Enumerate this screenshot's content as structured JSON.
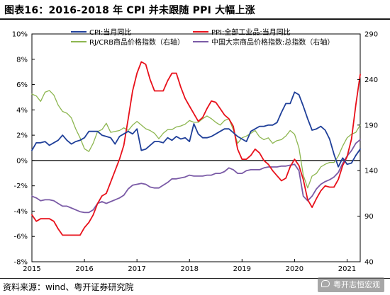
{
  "title": "图表16：2016-2018 年 CPI 并未跟随 PPI 大幅上涨",
  "source": "资料来源：wind、粤开证券研究院",
  "watermark": "粤开志恒宏观",
  "colors": {
    "cpi": "#1f3f99",
    "ppi": "#e8101a",
    "rjcrb": "#8db650",
    "cn": "#7a5aa6",
    "zero": "#000000"
  },
  "chart_data": {
    "type": "line",
    "x_range": [
      "2015-01",
      "2021-04"
    ],
    "x_ticks": [
      "2015",
      "2016",
      "2017",
      "2018",
      "2019",
      "2020",
      "2021"
    ],
    "y_left": {
      "ticks": [
        "10%",
        "8%",
        "6%",
        "4%",
        "2%",
        "0%",
        "-2%",
        "-4%",
        "-6%",
        "-8%"
      ],
      "range": [
        -8,
        10
      ]
    },
    "y_right": {
      "ticks": [
        "290",
        "240",
        "190",
        "140",
        "90",
        "40"
      ],
      "range": [
        40,
        290
      ]
    },
    "legend": [
      {
        "key": "cpi",
        "label": "CPI:当月同比"
      },
      {
        "key": "ppi",
        "label": "PPI:全部工业品:当月同比"
      },
      {
        "key": "rjcrb",
        "label": "RJ/CRB商品价格指数（右轴）"
      },
      {
        "key": "cn",
        "label": "中国大宗商品价格指数:总指数（右轴）"
      }
    ],
    "series": [
      {
        "name": "CPI:当月同比",
        "key": "cpi",
        "axis": "left",
        "x": [
          "2015-01",
          "2015-02",
          "2015-03",
          "2015-04",
          "2015-05",
          "2015-06",
          "2015-07",
          "2015-08",
          "2015-09",
          "2015-10",
          "2015-11",
          "2015-12",
          "2016-01",
          "2016-02",
          "2016-03",
          "2016-04",
          "2016-05",
          "2016-06",
          "2016-07",
          "2016-08",
          "2016-09",
          "2016-10",
          "2016-11",
          "2016-12",
          "2017-01",
          "2017-02",
          "2017-03",
          "2017-04",
          "2017-05",
          "2017-06",
          "2017-07",
          "2017-08",
          "2017-09",
          "2017-10",
          "2017-11",
          "2017-12",
          "2018-01",
          "2018-02",
          "2018-03",
          "2018-04",
          "2018-05",
          "2018-06",
          "2018-07",
          "2018-08",
          "2018-09",
          "2018-10",
          "2018-11",
          "2018-12",
          "2019-01",
          "2019-02",
          "2019-03",
          "2019-04",
          "2019-05",
          "2019-06",
          "2019-07",
          "2019-08",
          "2019-09",
          "2019-10",
          "2019-11",
          "2019-12",
          "2020-01",
          "2020-02",
          "2020-03",
          "2020-04",
          "2020-05",
          "2020-06",
          "2020-07",
          "2020-08",
          "2020-09",
          "2020-10",
          "2020-11",
          "2020-12",
          "2021-01",
          "2021-02",
          "2021-03",
          "2021-04"
        ],
        "y": [
          0.8,
          1.4,
          1.4,
          1.5,
          1.2,
          1.4,
          1.6,
          2.0,
          1.6,
          1.3,
          1.5,
          1.6,
          1.8,
          2.3,
          2.3,
          2.3,
          2.0,
          1.9,
          1.8,
          1.3,
          1.9,
          2.1,
          2.3,
          2.1,
          2.5,
          0.8,
          0.9,
          1.2,
          1.5,
          1.5,
          1.4,
          1.8,
          1.6,
          1.9,
          1.7,
          1.8,
          1.5,
          2.9,
          2.1,
          1.8,
          1.8,
          1.9,
          2.1,
          2.3,
          2.5,
          2.5,
          2.2,
          1.9,
          1.7,
          1.5,
          2.3,
          2.5,
          2.7,
          2.7,
          2.8,
          2.8,
          3.0,
          3.8,
          4.5,
          4.5,
          5.4,
          5.2,
          4.3,
          3.3,
          2.4,
          2.5,
          2.7,
          2.4,
          1.7,
          0.5,
          -0.5,
          0.2,
          -0.3,
          -0.2,
          0.4,
          0.9
        ]
      },
      {
        "name": "PPI:全部工业品:当月同比",
        "key": "ppi",
        "axis": "left",
        "x": [
          "2015-01",
          "2015-02",
          "2015-03",
          "2015-04",
          "2015-05",
          "2015-06",
          "2015-07",
          "2015-08",
          "2015-09",
          "2015-10",
          "2015-11",
          "2015-12",
          "2016-01",
          "2016-02",
          "2016-03",
          "2016-04",
          "2016-05",
          "2016-06",
          "2016-07",
          "2016-08",
          "2016-09",
          "2016-10",
          "2016-11",
          "2016-12",
          "2017-01",
          "2017-02",
          "2017-03",
          "2017-04",
          "2017-05",
          "2017-06",
          "2017-07",
          "2017-08",
          "2017-09",
          "2017-10",
          "2017-11",
          "2017-12",
          "2018-01",
          "2018-02",
          "2018-03",
          "2018-04",
          "2018-05",
          "2018-06",
          "2018-07",
          "2018-08",
          "2018-09",
          "2018-10",
          "2018-11",
          "2018-12",
          "2019-01",
          "2019-02",
          "2019-03",
          "2019-04",
          "2019-05",
          "2019-06",
          "2019-07",
          "2019-08",
          "2019-09",
          "2019-10",
          "2019-11",
          "2019-12",
          "2020-01",
          "2020-02",
          "2020-03",
          "2020-04",
          "2020-05",
          "2020-06",
          "2020-07",
          "2020-08",
          "2020-09",
          "2020-10",
          "2020-11",
          "2020-12",
          "2021-01",
          "2021-02",
          "2021-03",
          "2021-04"
        ],
        "y": [
          -4.3,
          -4.8,
          -4.6,
          -4.6,
          -4.6,
          -4.8,
          -5.4,
          -5.9,
          -5.9,
          -5.9,
          -5.9,
          -5.9,
          -5.3,
          -4.9,
          -4.3,
          -3.4,
          -2.8,
          -2.6,
          -1.7,
          -0.8,
          0.1,
          1.2,
          3.3,
          5.5,
          6.9,
          7.8,
          7.6,
          6.4,
          5.5,
          5.5,
          5.5,
          6.3,
          6.9,
          6.9,
          5.8,
          4.9,
          4.3,
          3.7,
          3.1,
          3.4,
          4.1,
          4.7,
          4.6,
          4.1,
          3.6,
          3.3,
          2.7,
          0.9,
          0.1,
          0.1,
          0.4,
          0.9,
          0.6,
          0.0,
          -0.3,
          -0.8,
          -1.2,
          -1.6,
          -1.4,
          -0.5,
          0.1,
          -0.4,
          -1.5,
          -3.1,
          -3.7,
          -3.0,
          -2.4,
          -2.0,
          -2.1,
          -2.1,
          -1.5,
          -0.4,
          0.3,
          1.7,
          4.4,
          6.8
        ]
      },
      {
        "name": "RJ/CRB商品价格指数（右轴）",
        "key": "rjcrb",
        "axis": "right",
        "x": [
          "2015-01",
          "2015-02",
          "2015-03",
          "2015-04",
          "2015-05",
          "2015-06",
          "2015-07",
          "2015-08",
          "2015-09",
          "2015-10",
          "2015-11",
          "2015-12",
          "2016-01",
          "2016-02",
          "2016-03",
          "2016-04",
          "2016-05",
          "2016-06",
          "2016-07",
          "2016-08",
          "2016-09",
          "2016-10",
          "2016-11",
          "2016-12",
          "2017-01",
          "2017-02",
          "2017-03",
          "2017-04",
          "2017-05",
          "2017-06",
          "2017-07",
          "2017-08",
          "2017-09",
          "2017-10",
          "2017-11",
          "2017-12",
          "2018-01",
          "2018-02",
          "2018-03",
          "2018-04",
          "2018-05",
          "2018-06",
          "2018-07",
          "2018-08",
          "2018-09",
          "2018-10",
          "2018-11",
          "2018-12",
          "2019-01",
          "2019-02",
          "2019-03",
          "2019-04",
          "2019-05",
          "2019-06",
          "2019-07",
          "2019-08",
          "2019-09",
          "2019-10",
          "2019-11",
          "2019-12",
          "2020-01",
          "2020-02",
          "2020-03",
          "2020-04",
          "2020-05",
          "2020-06",
          "2020-07",
          "2020-08",
          "2020-09",
          "2020-10",
          "2020-11",
          "2020-12",
          "2021-01",
          "2021-02",
          "2021-03",
          "2021-04"
        ],
        "y": [
          224,
          222,
          216,
          226,
          228,
          223,
          212,
          205,
          203,
          198,
          186,
          176,
          164,
          161,
          170,
          183,
          185,
          192,
          182,
          183,
          184,
          187,
          184,
          190,
          194,
          190,
          186,
          184,
          181,
          175,
          181,
          185,
          185,
          188,
          189,
          191,
          195,
          193,
          193,
          197,
          200,
          197,
          193,
          190,
          195,
          197,
          185,
          170,
          176,
          178,
          181,
          184,
          177,
          174,
          176,
          170,
          173,
          174,
          178,
          184,
          180,
          165,
          135,
          121,
          134,
          137,
          144,
          147,
          149,
          149,
          156,
          167,
          176,
          180,
          182,
          190
        ]
      },
      {
        "name": "中国大宗商品价格指数:总指数（右轴）",
        "key": "cn",
        "axis": "right",
        "x": [
          "2015-01",
          "2015-02",
          "2015-03",
          "2015-04",
          "2015-05",
          "2015-06",
          "2015-07",
          "2015-08",
          "2015-09",
          "2015-10",
          "2015-11",
          "2015-12",
          "2016-01",
          "2016-02",
          "2016-03",
          "2016-04",
          "2016-05",
          "2016-06",
          "2016-07",
          "2016-08",
          "2016-09",
          "2016-10",
          "2016-11",
          "2016-12",
          "2017-01",
          "2017-02",
          "2017-03",
          "2017-04",
          "2017-05",
          "2017-06",
          "2017-07",
          "2017-08",
          "2017-09",
          "2017-10",
          "2017-11",
          "2017-12",
          "2018-01",
          "2018-02",
          "2018-03",
          "2018-04",
          "2018-05",
          "2018-06",
          "2018-07",
          "2018-08",
          "2018-09",
          "2018-10",
          "2018-11",
          "2018-12",
          "2019-01",
          "2019-02",
          "2019-03",
          "2019-04",
          "2019-05",
          "2019-06",
          "2019-07",
          "2019-08",
          "2019-09",
          "2019-10",
          "2019-11",
          "2019-12",
          "2020-01",
          "2020-02",
          "2020-03",
          "2020-04",
          "2020-05",
          "2020-06",
          "2020-07",
          "2020-08",
          "2020-09",
          "2020-10",
          "2020-11",
          "2020-12",
          "2021-01",
          "2021-02",
          "2021-03",
          "2021-04"
        ],
        "y": [
          112,
          110,
          107,
          108,
          108,
          107,
          104,
          101,
          101,
          99,
          97,
          95,
          94,
          94,
          97,
          104,
          106,
          104,
          106,
          108,
          110,
          113,
          120,
          124,
          125,
          126,
          125,
          122,
          121,
          121,
          124,
          127,
          131,
          131,
          132,
          133,
          135,
          134,
          134,
          134,
          135,
          135,
          137,
          137,
          139,
          143,
          141,
          137,
          137,
          140,
          141,
          141,
          141,
          143,
          144,
          144,
          144,
          145,
          145,
          146,
          147,
          140,
          112,
          107,
          112,
          120,
          125,
          128,
          130,
          133,
          138,
          148,
          156,
          162,
          170,
          174
        ]
      }
    ]
  }
}
